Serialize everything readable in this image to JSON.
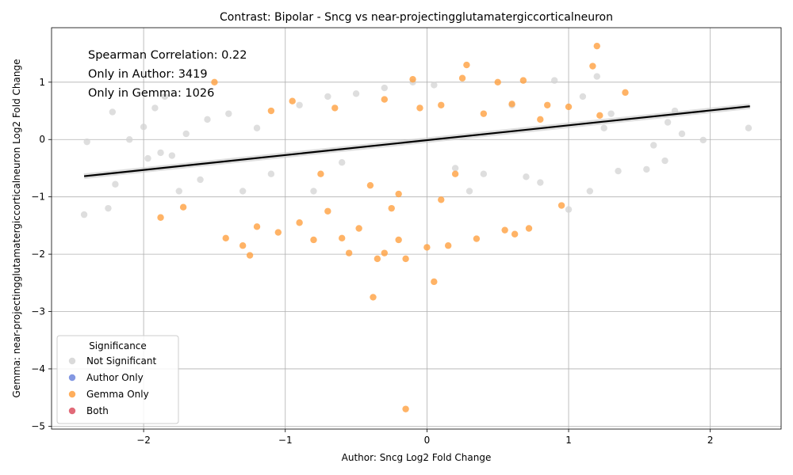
{
  "chart_data": {
    "type": "scatter",
    "title": "Contrast: Bipolar - Sncg vs near-projectingglutamatergiccorticalneuron",
    "xlabel": "Author: Sncg Log2 Fold Change",
    "ylabel": "Gemma: near-projectingglutamatergiccorticalneuron Log2 Fold Change",
    "xlim": [
      -2.65,
      2.5
    ],
    "ylim": [
      -5.05,
      1.95
    ],
    "xticks": [
      -2,
      -1,
      0,
      1,
      2
    ],
    "yticks": [
      -5,
      -4,
      -3,
      -2,
      -1,
      0,
      1
    ],
    "grid": true,
    "annotations": [
      "Spearman Correlation: 0.22",
      "Only in Author: 3419",
      "Only in Gemma: 1026"
    ],
    "legend": {
      "title": "Significance",
      "placement": "lower-left",
      "entries": [
        {
          "label": "Not Significant",
          "color": "#d3d3d3"
        },
        {
          "label": "Author Only",
          "color": "#6f86dd"
        },
        {
          "label": "Gemma Only",
          "color": "#ffa040"
        },
        {
          "label": "Both",
          "color": "#dc5060"
        }
      ]
    },
    "regression_line": {
      "x": [
        -2.42,
        2.28
      ],
      "y": [
        -0.64,
        0.58
      ],
      "color": "#000000"
    },
    "series": [
      {
        "name": "Not Significant",
        "color": "#d3d3d3",
        "points": [
          [
            -2.42,
            -1.31
          ],
          [
            -2.4,
            -0.04
          ],
          [
            -2.25,
            -1.2
          ],
          [
            -2.22,
            0.48
          ],
          [
            -2.2,
            -0.78
          ],
          [
            -2.1,
            0.0
          ],
          [
            -2.0,
            0.22
          ],
          [
            -1.97,
            -0.33
          ],
          [
            -1.92,
            0.55
          ],
          [
            -1.88,
            -0.23
          ],
          [
            -1.85,
            0.75
          ],
          [
            -1.75,
            -0.9
          ],
          [
            -1.7,
            0.1
          ],
          [
            -1.6,
            -0.7
          ],
          [
            -1.55,
            0.35
          ],
          [
            -1.4,
            0.45
          ],
          [
            -1.2,
            0.2
          ],
          [
            -1.1,
            -0.6
          ],
          [
            -0.9,
            0.6
          ],
          [
            -0.7,
            0.75
          ],
          [
            -0.5,
            0.8
          ],
          [
            -0.3,
            0.9
          ],
          [
            -0.1,
            1.0
          ],
          [
            0.05,
            0.95
          ],
          [
            0.2,
            -0.5
          ],
          [
            0.4,
            -0.6
          ],
          [
            0.6,
            0.6
          ],
          [
            0.8,
            -0.75
          ],
          [
            0.9,
            1.03
          ],
          [
            1.0,
            -1.22
          ],
          [
            1.1,
            0.75
          ],
          [
            1.15,
            -0.9
          ],
          [
            1.2,
            1.1
          ],
          [
            1.3,
            0.45
          ],
          [
            1.35,
            -0.55
          ],
          [
            1.55,
            -0.52
          ],
          [
            1.6,
            -0.1
          ],
          [
            1.68,
            -0.37
          ],
          [
            1.7,
            0.3
          ],
          [
            1.75,
            0.5
          ],
          [
            1.8,
            0.1
          ],
          [
            1.95,
            -0.01
          ],
          [
            2.27,
            0.2
          ],
          [
            -1.3,
            -0.9
          ],
          [
            -0.8,
            -0.9
          ],
          [
            0.3,
            -0.9
          ],
          [
            0.7,
            -0.65
          ],
          [
            -1.8,
            -0.28
          ],
          [
            1.25,
            0.2
          ],
          [
            -0.6,
            -0.4
          ]
        ]
      },
      {
        "name": "Author Only",
        "color": "#6f86dd",
        "points": []
      },
      {
        "name": "Gemma Only",
        "color": "#ffa040",
        "points": [
          [
            -1.88,
            -1.36
          ],
          [
            -1.72,
            -1.18
          ],
          [
            -1.5,
            1.0
          ],
          [
            -1.42,
            -1.72
          ],
          [
            -1.3,
            -1.85
          ],
          [
            -1.25,
            -2.02
          ],
          [
            -1.2,
            -1.52
          ],
          [
            -1.1,
            0.5
          ],
          [
            -1.05,
            -1.62
          ],
          [
            -0.95,
            0.67
          ],
          [
            -0.9,
            -1.45
          ],
          [
            -0.8,
            -1.75
          ],
          [
            -0.7,
            -1.25
          ],
          [
            -0.6,
            -1.72
          ],
          [
            -0.55,
            -1.98
          ],
          [
            -0.48,
            -1.55
          ],
          [
            -0.38,
            -2.75
          ],
          [
            -0.35,
            -2.08
          ],
          [
            -0.3,
            -1.98
          ],
          [
            -0.25,
            -1.2
          ],
          [
            -0.2,
            -1.75
          ],
          [
            -0.15,
            -2.08
          ],
          [
            -0.15,
            -4.7
          ],
          [
            -0.1,
            1.05
          ],
          [
            0.0,
            -1.88
          ],
          [
            0.05,
            -2.48
          ],
          [
            0.1,
            -1.05
          ],
          [
            0.15,
            -1.85
          ],
          [
            0.25,
            1.07
          ],
          [
            0.28,
            1.3
          ],
          [
            0.35,
            -1.73
          ],
          [
            0.5,
            1.0
          ],
          [
            0.55,
            -1.58
          ],
          [
            0.6,
            0.62
          ],
          [
            0.62,
            -1.65
          ],
          [
            0.68,
            1.03
          ],
          [
            0.72,
            -1.55
          ],
          [
            0.8,
            0.35
          ],
          [
            0.85,
            0.6
          ],
          [
            0.95,
            -1.15
          ],
          [
            1.0,
            0.57
          ],
          [
            1.17,
            1.28
          ],
          [
            1.2,
            1.63
          ],
          [
            1.22,
            0.42
          ],
          [
            1.4,
            0.82
          ],
          [
            -0.4,
            -0.8
          ],
          [
            -0.2,
            -0.95
          ],
          [
            -0.05,
            0.55
          ],
          [
            0.1,
            0.6
          ],
          [
            -0.65,
            0.55
          ],
          [
            -0.3,
            0.7
          ],
          [
            0.2,
            -0.6
          ],
          [
            -0.75,
            -0.6
          ],
          [
            0.4,
            0.45
          ]
        ]
      },
      {
        "name": "Both",
        "color": "#dc5060",
        "points": []
      }
    ]
  }
}
